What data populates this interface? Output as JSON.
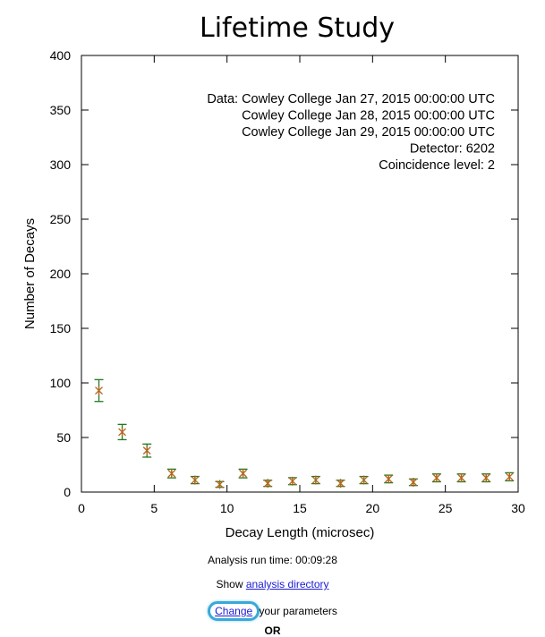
{
  "chart_data": {
    "type": "scatter",
    "title": "Lifetime Study",
    "xlabel": "Decay Length (microsec)",
    "ylabel": "Number of Decays",
    "xlim": [
      0,
      30
    ],
    "ylim": [
      0,
      400
    ],
    "xticks": [
      0,
      5,
      10,
      15,
      20,
      25,
      30
    ],
    "yticks": [
      0,
      50,
      100,
      150,
      200,
      250,
      300,
      350,
      400
    ],
    "grid": false,
    "marker_color": "#b5651d",
    "errorbar_color": "#1f7a1f",
    "points": [
      {
        "x": 1.2,
        "y": 93,
        "err": 10
      },
      {
        "x": 2.8,
        "y": 55,
        "err": 7
      },
      {
        "x": 4.5,
        "y": 38,
        "err": 6
      },
      {
        "x": 6.2,
        "y": 17,
        "err": 4
      },
      {
        "x": 7.8,
        "y": 11,
        "err": 3.3
      },
      {
        "x": 9.5,
        "y": 7,
        "err": 2.6
      },
      {
        "x": 11.1,
        "y": 17,
        "err": 4
      },
      {
        "x": 12.8,
        "y": 8,
        "err": 2.8
      },
      {
        "x": 14.5,
        "y": 10,
        "err": 3.2
      },
      {
        "x": 16.1,
        "y": 11,
        "err": 3.3
      },
      {
        "x": 17.8,
        "y": 8,
        "err": 2.8
      },
      {
        "x": 19.4,
        "y": 11,
        "err": 3.3
      },
      {
        "x": 21.1,
        "y": 12,
        "err": 3.5
      },
      {
        "x": 22.8,
        "y": 9,
        "err": 3
      },
      {
        "x": 24.4,
        "y": 13,
        "err": 3.6
      },
      {
        "x": 26.1,
        "y": 13,
        "err": 3.6
      },
      {
        "x": 27.8,
        "y": 13,
        "err": 3.6
      },
      {
        "x": 29.4,
        "y": 14,
        "err": 3.7
      }
    ],
    "annotation_lines": [
      "Data: Cowley College Jan 27, 2015 00:00:00 UTC",
      "Cowley College Jan 28, 2015 00:00:00 UTC",
      "Cowley College Jan 29, 2015 00:00:00 UTC",
      "Detector: 6202",
      "Coincidence level: 2"
    ]
  },
  "footer": {
    "runtime": "Analysis run time: 00:09:28",
    "show_prefix": "Show ",
    "show_link": "analysis directory",
    "change_link": "Change",
    "change_suffix": " your parameters",
    "or": "OR"
  }
}
